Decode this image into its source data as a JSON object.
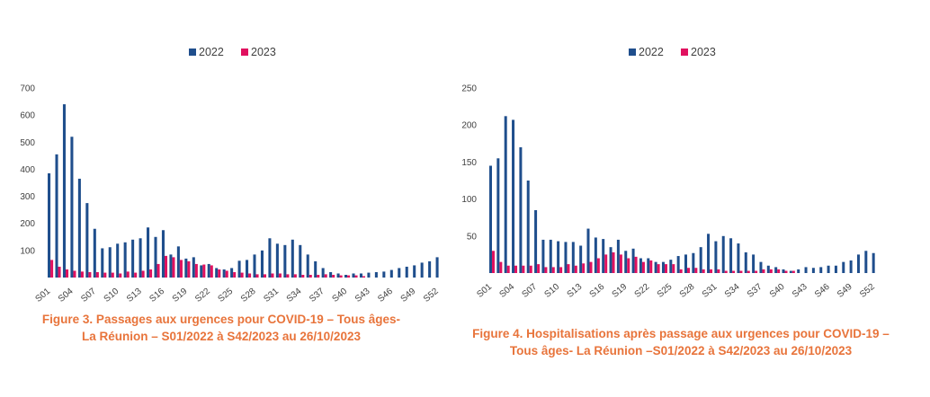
{
  "weeks": [
    "S01",
    "S02",
    "S03",
    "S04",
    "S05",
    "S06",
    "S07",
    "S08",
    "S09",
    "S10",
    "S11",
    "S12",
    "S13",
    "S14",
    "S15",
    "S16",
    "S17",
    "S18",
    "S19",
    "S20",
    "S21",
    "S22",
    "S23",
    "S24",
    "S25",
    "S26",
    "S27",
    "S28",
    "S29",
    "S30",
    "S31",
    "S32",
    "S33",
    "S34",
    "S35",
    "S36",
    "S37",
    "S38",
    "S39",
    "S40",
    "S41",
    "S42",
    "S43",
    "S44",
    "S45",
    "S46",
    "S47",
    "S48",
    "S49",
    "S50",
    "S51",
    "S52"
  ],
  "chart_data": [
    {
      "type": "bar",
      "legend": "top-center",
      "ylim": [
        0,
        700
      ],
      "yticks": [
        100,
        200,
        300,
        400,
        500,
        600,
        700
      ],
      "xticks": [
        "S01",
        "S04",
        "S07",
        "S10",
        "S13",
        "S16",
        "S19",
        "S22",
        "S25",
        "S28",
        "S31",
        "S34",
        "S37",
        "S40",
        "S43",
        "S46",
        "S49",
        "S52"
      ],
      "series": [
        {
          "name": "2022",
          "color": "#1F4E8C",
          "values": [
            385,
            455,
            640,
            520,
            365,
            275,
            180,
            108,
            112,
            125,
            130,
            140,
            145,
            185,
            150,
            175,
            85,
            115,
            70,
            75,
            45,
            50,
            35,
            30,
            35,
            62,
            65,
            85,
            100,
            145,
            125,
            120,
            140,
            120,
            85,
            60,
            35,
            20,
            15,
            10,
            15,
            15,
            18,
            20,
            22,
            28,
            35,
            40,
            45,
            55,
            60,
            75
          ]
        },
        {
          "name": "2023",
          "color": "#E0115F",
          "values": [
            65,
            40,
            30,
            25,
            22,
            20,
            20,
            18,
            18,
            15,
            22,
            18,
            25,
            30,
            50,
            80,
            75,
            65,
            60,
            50,
            48,
            45,
            30,
            25,
            20,
            18,
            15,
            12,
            12,
            15,
            15,
            12,
            12,
            10,
            10,
            10,
            12,
            10,
            8,
            8,
            8,
            5,
            0,
            0,
            0,
            0,
            0,
            0,
            0,
            0,
            0,
            0
          ]
        }
      ]
    },
    {
      "type": "bar",
      "legend": "top-center",
      "ylim": [
        0,
        250
      ],
      "yticks": [
        50,
        100,
        150,
        200,
        250
      ],
      "xticks": [
        "S01",
        "S04",
        "S07",
        "S10",
        "S13",
        "S16",
        "S19",
        "S22",
        "S25",
        "S28",
        "S31",
        "S34",
        "S37",
        "S40",
        "S43",
        "S46",
        "S49",
        "S52"
      ],
      "series": [
        {
          "name": "2022",
          "color": "#1F4E8C",
          "values": [
            145,
            155,
            212,
            207,
            170,
            125,
            85,
            45,
            45,
            43,
            42,
            42,
            37,
            60,
            48,
            46,
            35,
            45,
            30,
            33,
            20,
            20,
            15,
            15,
            18,
            23,
            25,
            27,
            35,
            53,
            43,
            50,
            47,
            40,
            28,
            25,
            15,
            10,
            8,
            5,
            3,
            5,
            8,
            7,
            8,
            10,
            10,
            15,
            17,
            25,
            30,
            27
          ]
        },
        {
          "name": "2023",
          "color": "#E0115F",
          "values": [
            30,
            15,
            10,
            10,
            10,
            10,
            12,
            8,
            8,
            8,
            12,
            10,
            13,
            15,
            20,
            25,
            28,
            25,
            20,
            22,
            15,
            17,
            12,
            12,
            12,
            5,
            7,
            7,
            5,
            5,
            5,
            3,
            3,
            3,
            3,
            3,
            5,
            5,
            5,
            3,
            3,
            0,
            0,
            0,
            0,
            0,
            0,
            0,
            0,
            0,
            0,
            0
          ]
        }
      ]
    }
  ],
  "captions": [
    {
      "line1": "Figure 3. Passages aux urgences pour COVID-19 – Tous âges-",
      "line2": "La Réunion – S01/2022 à S42/2023 au 26/10/2023"
    },
    {
      "line1": "Figure 4. Hospitalisations après passage aux urgences pour COVID-19 –",
      "line2": "Tous âges- La Réunion –S01/2022 à S42/2023 au 26/10/2023"
    }
  ]
}
